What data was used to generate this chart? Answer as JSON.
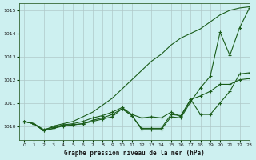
{
  "title": "Graphe pression niveau de la mer (hPa)",
  "bg_color": "#cdf0f0",
  "grid_color": "#b0c8c8",
  "line_color": "#1a5c1a",
  "xlim": [
    -0.5,
    23
  ],
  "ylim": [
    1009.4,
    1015.3
  ],
  "yticks": [
    1010,
    1011,
    1012,
    1013,
    1014,
    1015
  ],
  "xticks": [
    0,
    1,
    2,
    3,
    4,
    5,
    6,
    7,
    8,
    9,
    10,
    11,
    12,
    13,
    14,
    15,
    16,
    17,
    18,
    19,
    20,
    21,
    22,
    23
  ],
  "series_no_marker": [
    [
      1010.2,
      1010.1,
      1009.8,
      1010.0,
      1010.1,
      1010.2,
      1010.4,
      1010.6,
      1010.9,
      1011.2,
      1011.6,
      1012.0,
      1012.4,
      1012.8,
      1013.1,
      1013.5,
      1013.8,
      1014.0,
      1014.2,
      1014.5,
      1014.8,
      1015.0,
      1015.1,
      1015.15
    ]
  ],
  "series_with_marker": [
    [
      1010.2,
      1010.1,
      1009.8,
      1009.9,
      1010.05,
      1010.05,
      1010.1,
      1010.2,
      1010.3,
      1010.4,
      1010.75,
      1010.45,
      1009.85,
      1009.85,
      1009.85,
      1010.4,
      1010.35,
      1011.05,
      1011.65,
      1012.15,
      1014.05,
      1013.05,
      1014.25,
      1015.1
    ],
    [
      1010.2,
      1010.1,
      1009.8,
      1009.9,
      1010.0,
      1010.05,
      1010.1,
      1010.25,
      1010.35,
      1010.5,
      1010.75,
      1010.45,
      1009.9,
      1009.9,
      1009.9,
      1010.5,
      1010.45,
      1011.15,
      1010.5,
      1010.5,
      1011.0,
      1011.5,
      1012.25,
      1012.3
    ],
    [
      1010.2,
      1010.1,
      1009.85,
      1009.95,
      1010.05,
      1010.1,
      1010.2,
      1010.35,
      1010.45,
      1010.6,
      1010.8,
      1010.5,
      1010.35,
      1010.4,
      1010.35,
      1010.6,
      1010.4,
      1011.15,
      1011.3,
      1011.5,
      1011.8,
      1011.8,
      1012.0,
      1012.05
    ]
  ]
}
